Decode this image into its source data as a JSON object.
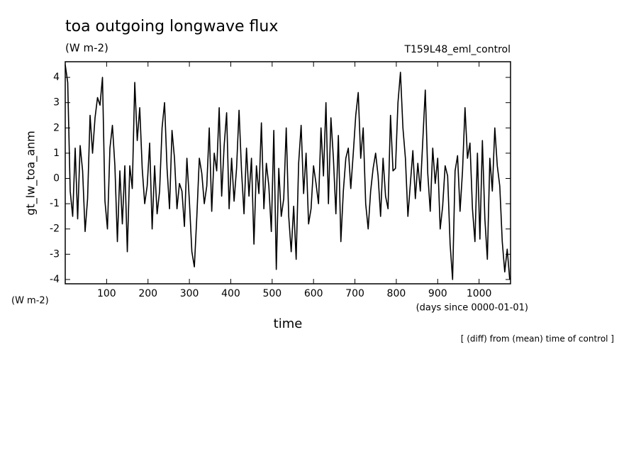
{
  "chart_data": {
    "type": "line",
    "title": "toa outgoing longwave flux",
    "subtitle": "(W m-2)",
    "run_label": "T159L48_eml_control",
    "y_label": "gt_lw_toa_anm",
    "y_units": "(W m-2)",
    "x_label": "time",
    "x_units": "(days since 0000-01-01)",
    "note": "[ (diff) from (mean) time of control ]",
    "xlim": [
      0,
      1076
    ],
    "ylim": [
      -4.17,
      4.62
    ],
    "xticks": [
      100,
      200,
      300,
      400,
      500,
      600,
      700,
      800,
      900,
      1000
    ],
    "yticks": [
      -4,
      -3,
      -2,
      -1,
      0,
      1,
      2,
      3,
      4
    ],
    "x": [
      0,
      6,
      12,
      18,
      24,
      30,
      36,
      42,
      48,
      54,
      60,
      66,
      72,
      78,
      84,
      90,
      96,
      102,
      108,
      114,
      120,
      126,
      132,
      138,
      144,
      150,
      156,
      162,
      168,
      174,
      180,
      186,
      192,
      198,
      204,
      210,
      216,
      222,
      228,
      234,
      240,
      246,
      252,
      258,
      264,
      270,
      276,
      282,
      288,
      294,
      300,
      306,
      312,
      318,
      324,
      330,
      336,
      342,
      348,
      354,
      360,
      366,
      372,
      378,
      384,
      390,
      396,
      402,
      408,
      414,
      420,
      426,
      432,
      438,
      444,
      450,
      456,
      462,
      468,
      474,
      480,
      486,
      492,
      498,
      504,
      510,
      516,
      522,
      528,
      534,
      540,
      546,
      552,
      558,
      564,
      570,
      576,
      582,
      588,
      594,
      600,
      606,
      612,
      618,
      624,
      630,
      636,
      642,
      648,
      654,
      660,
      666,
      672,
      678,
      684,
      690,
      696,
      702,
      708,
      714,
      720,
      726,
      732,
      738,
      744,
      750,
      756,
      762,
      768,
      774,
      780,
      786,
      792,
      798,
      804,
      810,
      816,
      822,
      828,
      834,
      840,
      846,
      852,
      858,
      864,
      870,
      876,
      882,
      888,
      894,
      900,
      906,
      912,
      918,
      924,
      930,
      936,
      942,
      948,
      954,
      960,
      966,
      972,
      978,
      984,
      990,
      996,
      1002,
      1008,
      1014,
      1020,
      1026,
      1032,
      1038,
      1044,
      1050,
      1056,
      1062,
      1068,
      1074
    ],
    "series": [
      {
        "color": "#000000",
        "values": [
          4.5,
          3.8,
          -0.5,
          -1.5,
          1.2,
          -1.6,
          1.3,
          0.3,
          -2.1,
          -0.8,
          2.5,
          1.0,
          2.4,
          3.2,
          2.9,
          4.0,
          -0.9,
          -2.0,
          1.2,
          2.1,
          0.5,
          -2.5,
          0.3,
          -1.8,
          0.5,
          -2.9,
          0.5,
          -0.4,
          3.8,
          1.5,
          2.8,
          0.4,
          -1.0,
          -0.3,
          1.4,
          -2.0,
          0.5,
          -1.4,
          -0.5,
          2.0,
          3.0,
          0.4,
          -1.2,
          1.9,
          0.8,
          -1.2,
          -0.2,
          -0.5,
          -1.9,
          0.8,
          -0.9,
          -2.9,
          -3.5,
          -1.5,
          0.8,
          0.2,
          -1.0,
          -0.3,
          2.0,
          -1.3,
          1.0,
          0.3,
          2.8,
          -0.7,
          1.3,
          2.6,
          -1.2,
          0.8,
          -0.9,
          0.4,
          2.7,
          0.3,
          -1.4,
          1.2,
          -0.7,
          0.8,
          -2.6,
          0.5,
          -0.6,
          2.2,
          -1.2,
          0.6,
          -0.3,
          -2.1,
          1.9,
          -3.6,
          0.4,
          -1.5,
          -0.8,
          2.0,
          -1.5,
          -2.9,
          -1.1,
          -3.2,
          0.6,
          2.1,
          -0.6,
          1.0,
          -1.8,
          -1.2,
          0.5,
          -0.2,
          -1.0,
          2.0,
          0.1,
          3.0,
          -1.0,
          2.4,
          0.8,
          -1.4,
          1.7,
          -2.5,
          -0.5,
          0.8,
          1.2,
          -0.4,
          1.0,
          2.5,
          3.4,
          0.8,
          2.0,
          -1.0,
          -2.0,
          -0.5,
          0.4,
          1.0,
          0.1,
          -1.5,
          0.8,
          -0.7,
          -1.2,
          2.5,
          0.3,
          0.4,
          3.0,
          4.2,
          2.0,
          0.8,
          -1.5,
          -0.2,
          1.1,
          -0.8,
          0.6,
          -0.5,
          1.5,
          3.5,
          0.2,
          -1.3,
          1.2,
          -0.2,
          0.8,
          -2.0,
          -1.1,
          0.5,
          0.1,
          -2.6,
          -4.0,
          0.3,
          0.9,
          -1.3,
          0.3,
          2.8,
          0.8,
          1.4,
          -1.2,
          -2.5,
          1.0,
          -2.4,
          1.5,
          -1.6,
          -3.2,
          0.8,
          -0.5,
          2.0,
          0.5,
          -0.3,
          -2.5,
          -3.7,
          -2.8,
          -4.0
        ]
      }
    ]
  }
}
